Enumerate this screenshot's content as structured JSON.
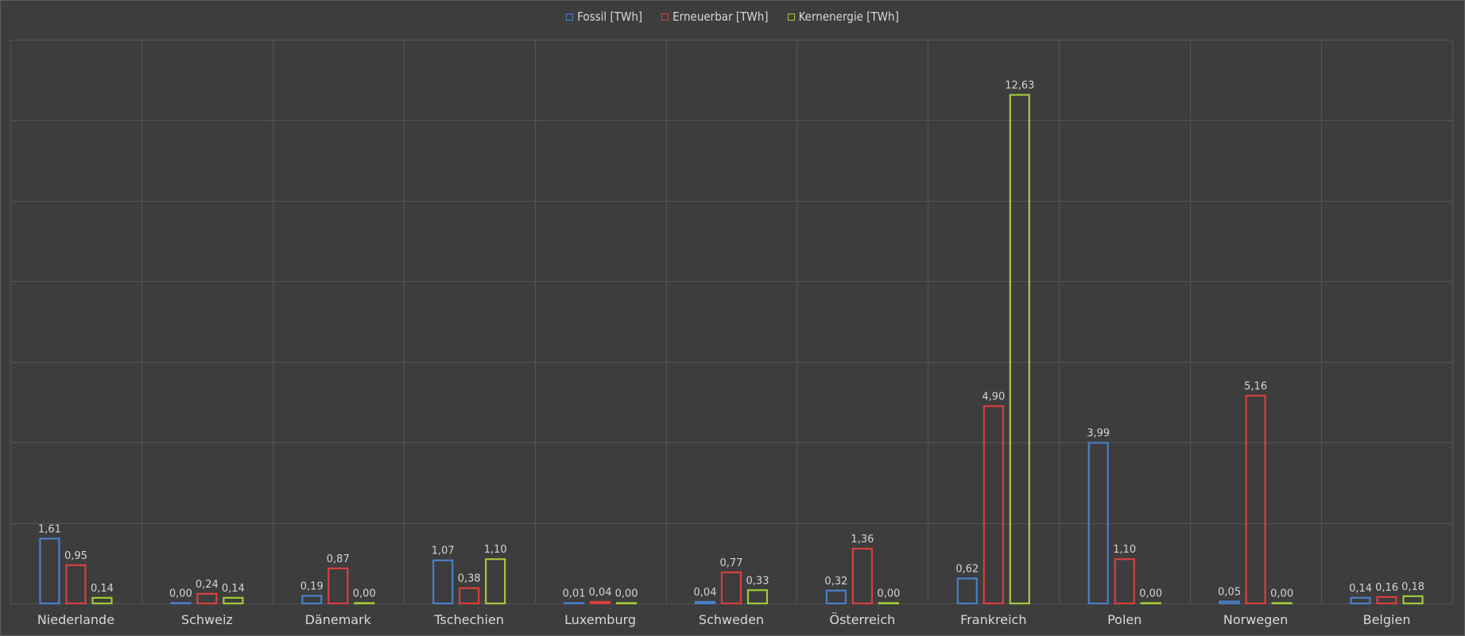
{
  "chart_data": {
    "type": "bar",
    "categories": [
      "Niederlande",
      "Schweiz",
      "Dänemark",
      "Tschechien",
      "Luxemburg",
      "Schweden",
      "Österreich",
      "Frankreich",
      "Polen",
      "Norwegen",
      "Belgien"
    ],
    "series": [
      {
        "name": "Fossil [TWh]",
        "color": "#4a7fc9",
        "values": [
          1.61,
          0.0,
          0.19,
          1.07,
          0.01,
          0.04,
          0.32,
          0.62,
          3.99,
          0.05,
          0.14
        ],
        "labels": [
          "1,61",
          "0,00",
          "0,19",
          "1,07",
          "0,01",
          "0,04",
          "0,32",
          "0,62",
          "3,99",
          "0,05",
          "0,14"
        ]
      },
      {
        "name": "Erneuerbar [TWh]",
        "color": "#d9403f",
        "values": [
          0.95,
          0.24,
          0.87,
          0.38,
          0.04,
          0.77,
          1.36,
          4.9,
          1.1,
          5.16,
          0.16
        ],
        "labels": [
          "0,95",
          "0,24",
          "0,87",
          "0,38",
          "0,04",
          "0,77",
          "1,36",
          "4,90",
          "1,10",
          "5,16",
          "0,16"
        ]
      },
      {
        "name": "Kernenergie [TWh]",
        "color": "#a3c93a",
        "values": [
          0.14,
          0.14,
          0.0,
          1.1,
          0.0,
          0.33,
          0.0,
          12.63,
          0.0,
          0.0,
          0.18
        ],
        "labels": [
          "0,14",
          "0,14",
          "0,00",
          "1,10",
          "0,00",
          "0,33",
          "0,00",
          "12,63",
          "0,00",
          "0,00",
          "0,18"
        ]
      }
    ],
    "ylim": [
      0,
      14
    ],
    "grid": true,
    "legend_position": "top-center"
  }
}
